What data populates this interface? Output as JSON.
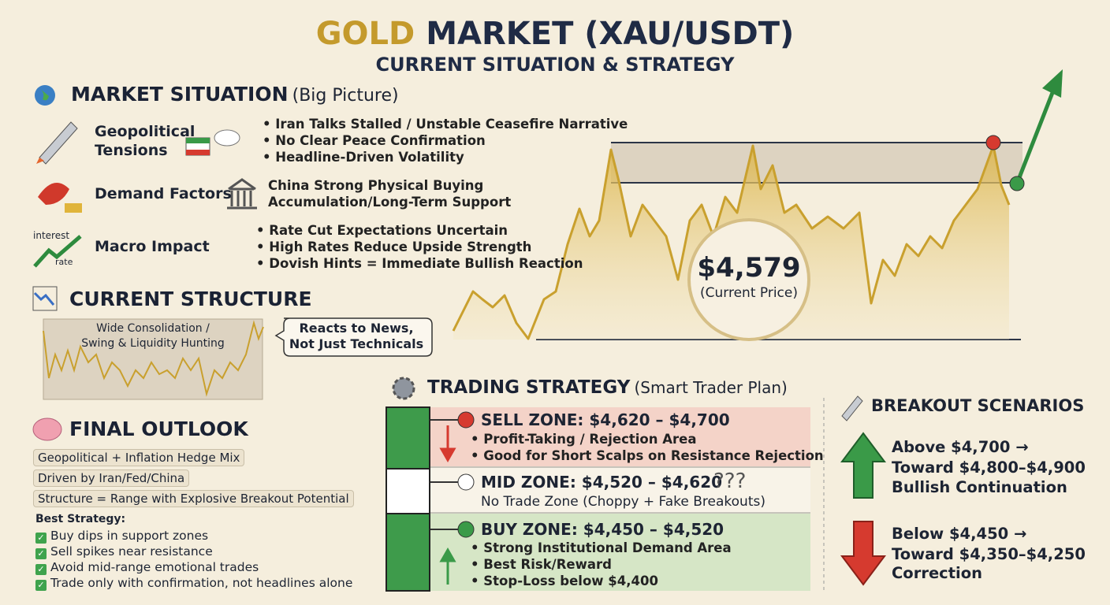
{
  "header": {
    "title_gold": "GOLD",
    "title_rest": "MARKET (XAU/USDT)",
    "subtitle": "CURRENT SITUATION & STRATEGY"
  },
  "market_situation": {
    "title": "MARKET SITUATION",
    "note": "(Big Picture)",
    "rows": [
      {
        "label": "Geopolitical Tensions",
        "points": [
          "• Iran Talks Stalled / Unstable Ceasefire Narrative",
          "• No Clear Peace Confirmation",
          "• Headline-Driven Volatility"
        ]
      },
      {
        "label": "Demand Factors",
        "points": [
          "China Strong Physical Buying",
          "Accumulation/Long-Term Support"
        ]
      },
      {
        "label": "Macro Impact",
        "icon_labels": [
          "interest",
          "rate"
        ],
        "points": [
          "• Rate Cut Expectations Uncertain",
          "• High Rates Reduce Upside Strength",
          "• Dovish Hints = Immediate Bullish Reaction"
        ]
      }
    ]
  },
  "current_structure": {
    "title": "CURRENT STRUCTURE",
    "chart_label": [
      "Wide Consolidation /",
      "Swing & Liquidity Hunting"
    ],
    "callout": [
      "Reacts to News,",
      "Not Just Technicals"
    ]
  },
  "price": {
    "value": "$4,579",
    "label": "(Current Price)"
  },
  "final_outlook": {
    "title": "FINAL OUTLOOK",
    "tags": [
      "Geopolitical + Inflation Hedge Mix",
      "Driven by Iran/Fed/China",
      "Structure = Range with Explosive Breakout Potential"
    ],
    "strategy_title": "Best Strategy:",
    "strategy": [
      "Buy dips in support zones",
      "Sell spikes near resistance",
      "Avoid mid-range emotional trades",
      "Trade only with confirmation, not headlines alone"
    ]
  },
  "trading_strategy": {
    "title": "TRADING STRATEGY",
    "note": "(Smart Trader Plan)",
    "zones": [
      {
        "title": "SELL ZONE: $4,620 – $4,700",
        "points": [
          "• Profit-Taking / Rejection Area",
          "• Good for Short Scalps on Resistance Rejection"
        ]
      },
      {
        "title": "MID ZONE: $4,520 – $4,620",
        "mark": "???",
        "points": [
          "No Trade Zone (Choppy + Fake Breakouts)"
        ]
      },
      {
        "title": "BUY ZONE: $4,450 – $4,520",
        "points": [
          "• Strong Institutional Demand Area",
          "• Best Risk/Reward",
          "• Stop-Loss below $4,400"
        ]
      }
    ]
  },
  "breakout": {
    "title": "BREAKOUT SCENARIOS",
    "scenarios": [
      {
        "lines": [
          "Above $4,700 →",
          "Toward $4,800–$4,900",
          "Bullish Continuation"
        ]
      },
      {
        "lines": [
          "Below $4,450 →",
          "Toward $4,350–$4,250",
          "Correction"
        ]
      }
    ]
  }
}
